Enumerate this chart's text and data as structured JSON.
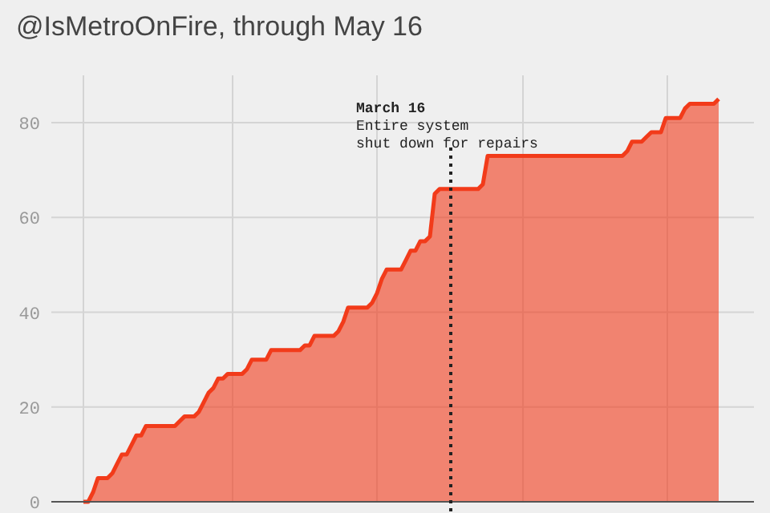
{
  "chart_data": {
    "type": "area",
    "title": "@IsMetroOnFire, through May 16",
    "categories": [
      null,
      null,
      null,
      null,
      null,
      null,
      null,
      null,
      null,
      null,
      null,
      null,
      null,
      null,
      null,
      null,
      null,
      null,
      null,
      null,
      null,
      null,
      null,
      null,
      null,
      null,
      null,
      null,
      null,
      null,
      null,
      null,
      null,
      null,
      null,
      null,
      null,
      null,
      null,
      null,
      null,
      null,
      null,
      null,
      null,
      null,
      null,
      null,
      null,
      null,
      null,
      null,
      null,
      null,
      null,
      null,
      null,
      null,
      null,
      null,
      null,
      null,
      null,
      null,
      null,
      null,
      null,
      null,
      null,
      null,
      null,
      null,
      null,
      null,
      null,
      null,
      null,
      null,
      null,
      null,
      null,
      null,
      null,
      null,
      null,
      null,
      null,
      null,
      null,
      null,
      null,
      null,
      null,
      null,
      null,
      null,
      null,
      null,
      null,
      null,
      null,
      null,
      null,
      null,
      null,
      null,
      null,
      null,
      null,
      null,
      null,
      null,
      null,
      null,
      null,
      null,
      null,
      null,
      null,
      null,
      null,
      null,
      null,
      null,
      null,
      null,
      null,
      null,
      null,
      null,
      null,
      null,
      null
    ],
    "series": [
      {
        "color": "#f23b1a",
        "values": [
          0,
          0,
          2,
          5,
          5,
          5,
          6,
          8,
          10,
          10,
          12,
          14,
          14,
          16,
          16,
          16,
          16,
          16,
          16,
          16,
          17,
          18,
          18,
          18,
          19,
          21,
          23,
          24,
          26,
          26,
          27,
          27,
          27,
          27,
          28,
          30,
          30,
          30,
          30,
          32,
          32,
          32,
          32,
          32,
          32,
          32,
          33,
          33,
          35,
          35,
          35,
          35,
          35,
          36,
          38,
          41,
          41,
          41,
          41,
          41,
          42,
          44,
          47,
          49,
          49,
          49,
          49,
          51,
          53,
          53,
          55,
          55,
          56,
          65,
          66,
          66,
          66,
          66,
          66,
          66,
          66,
          66,
          66,
          67,
          73,
          73,
          73,
          73,
          73,
          73,
          73,
          73,
          73,
          73,
          73,
          73,
          73,
          73,
          73,
          73,
          73,
          73,
          73,
          73,
          73,
          73,
          73,
          73,
          73,
          73,
          73,
          73,
          73,
          74,
          76,
          76,
          76,
          77,
          78,
          78,
          78,
          81,
          81,
          81,
          81,
          83,
          84,
          84,
          84,
          84,
          84,
          84,
          85
        ]
      }
    ],
    "ylim": [
      0,
      90
    ],
    "yticks": [
      0,
      20,
      40,
      60,
      80
    ],
    "grid": true,
    "tick_labels": "y",
    "annotations": [
      "March 16",
      "Entire system shut down for repairs"
    ]
  }
}
